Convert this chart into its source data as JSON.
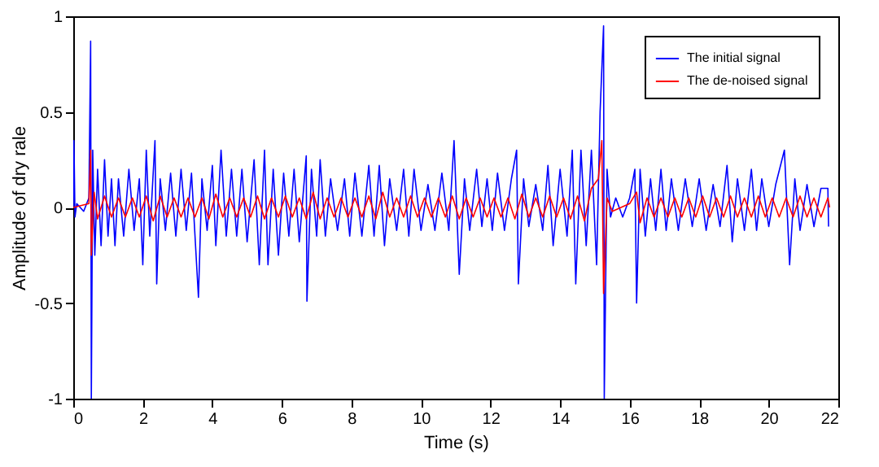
{
  "chart_data": {
    "type": "line",
    "xlabel": "Time (s)",
    "ylabel": "Amplitude of dry rale",
    "xlim": [
      0,
      22
    ],
    "ylim": [
      -1,
      1
    ],
    "xticks": [
      0,
      2,
      4,
      6,
      8,
      10,
      12,
      14,
      16,
      18,
      20,
      22
    ],
    "yticks": [
      -1,
      -0.5,
      0,
      0.5,
      1
    ],
    "grid": false,
    "legend": "top right",
    "marker": "none",
    "line_style": "solid",
    "series": [
      {
        "name": "The initial signal",
        "color": "#0000ff",
        "x": [
          0,
          0.02,
          0.05,
          0.1,
          0.3,
          0.45,
          0.5,
          0.52,
          0.56,
          0.62,
          0.7,
          0.8,
          0.9,
          1.0,
          1.1,
          1.2,
          1.3,
          1.45,
          1.6,
          1.75,
          1.9,
          2.0,
          2.1,
          2.2,
          2.35,
          2.4,
          2.5,
          2.65,
          2.8,
          2.95,
          3.1,
          3.25,
          3.4,
          3.6,
          3.7,
          3.85,
          4.0,
          4.1,
          4.25,
          4.4,
          4.55,
          4.7,
          4.85,
          5.0,
          5.2,
          5.35,
          5.5,
          5.6,
          5.75,
          5.9,
          6.05,
          6.2,
          6.35,
          6.5,
          6.7,
          6.72,
          6.85,
          7.0,
          7.1,
          7.25,
          7.4,
          7.6,
          7.8,
          7.95,
          8.1,
          8.3,
          8.5,
          8.65,
          8.8,
          8.95,
          9.1,
          9.3,
          9.5,
          9.65,
          9.8,
          10.0,
          10.2,
          10.4,
          10.6,
          10.8,
          10.95,
          11.1,
          11.25,
          11.4,
          11.6,
          11.75,
          11.9,
          12.05,
          12.2,
          12.4,
          12.6,
          12.75,
          12.8,
          12.95,
          13.1,
          13.3,
          13.5,
          13.65,
          13.8,
          14.0,
          14.2,
          14.35,
          14.45,
          14.6,
          14.75,
          14.9,
          15.05,
          15.15,
          15.25,
          15.27,
          15.35,
          15.45,
          15.6,
          15.8,
          16.0,
          16.15,
          16.2,
          16.3,
          16.45,
          16.6,
          16.75,
          16.9,
          17.05,
          17.2,
          17.4,
          17.6,
          17.8,
          18.0,
          18.2,
          18.4,
          18.6,
          18.8,
          18.95,
          19.1,
          19.3,
          19.5,
          19.65,
          19.8,
          20.0,
          20.2,
          20.45,
          20.6,
          20.75,
          20.9,
          21.1,
          21.3,
          21.5,
          21.7,
          21.72
        ],
        "values": [
          0,
          0.35,
          -0.05,
          0.02,
          -0.02,
          0.05,
          0.87,
          -1.0,
          0.3,
          -0.25,
          0.2,
          -0.2,
          0.25,
          -0.15,
          0.15,
          -0.2,
          0.15,
          -0.15,
          0.2,
          -0.12,
          0.15,
          -0.3,
          0.3,
          -0.15,
          0.35,
          -0.4,
          0.15,
          -0.12,
          0.18,
          -0.15,
          0.2,
          -0.12,
          0.18,
          -0.47,
          0.15,
          -0.12,
          0.22,
          -0.2,
          0.3,
          -0.15,
          0.2,
          -0.15,
          0.2,
          -0.18,
          0.25,
          -0.3,
          0.3,
          -0.3,
          0.2,
          -0.25,
          0.18,
          -0.15,
          0.2,
          -0.18,
          0.27,
          -0.49,
          0.2,
          -0.15,
          0.25,
          -0.15,
          0.15,
          -0.12,
          0.15,
          -0.15,
          0.18,
          -0.15,
          0.22,
          -0.15,
          0.22,
          -0.2,
          0.15,
          -0.12,
          0.2,
          -0.15,
          0.2,
          -0.12,
          0.12,
          -0.12,
          0.18,
          -0.12,
          0.35,
          -0.35,
          0.15,
          -0.12,
          0.2,
          -0.1,
          0.15,
          -0.12,
          0.18,
          -0.12,
          0.15,
          0.3,
          -0.4,
          0.15,
          -0.1,
          0.12,
          -0.12,
          0.22,
          -0.2,
          0.2,
          -0.15,
          0.3,
          -0.4,
          0.3,
          -0.2,
          0.3,
          -0.3,
          0.5,
          0.95,
          -1.0,
          0.2,
          -0.05,
          0.05,
          -0.05,
          0.05,
          0.2,
          -0.5,
          0.2,
          -0.15,
          0.15,
          -0.12,
          0.2,
          -0.12,
          0.15,
          -0.12,
          0.15,
          -0.1,
          0.15,
          -0.12,
          0.12,
          -0.1,
          0.22,
          -0.18,
          0.15,
          -0.12,
          0.2,
          -0.12,
          0.15,
          -0.1,
          0.12,
          0.3,
          -0.3,
          0.15,
          -0.12,
          0.12,
          -0.1,
          0.1,
          0.1,
          -0.1
        ]
      },
      {
        "name": "The de-noised signal",
        "color": "#ff0000",
        "x": [
          0,
          0.45,
          0.5,
          0.52,
          0.6,
          0.7,
          0.9,
          1.1,
          1.3,
          1.5,
          1.7,
          1.9,
          2.1,
          2.3,
          2.5,
          2.7,
          2.9,
          3.1,
          3.3,
          3.5,
          3.7,
          3.9,
          4.1,
          4.3,
          4.5,
          4.7,
          4.9,
          5.1,
          5.3,
          5.5,
          5.7,
          5.9,
          6.1,
          6.3,
          6.5,
          6.7,
          6.9,
          7.1,
          7.3,
          7.5,
          7.7,
          7.9,
          8.1,
          8.3,
          8.5,
          8.7,
          8.9,
          9.1,
          9.3,
          9.5,
          9.7,
          9.9,
          10.1,
          10.3,
          10.5,
          10.7,
          10.9,
          11.1,
          11.3,
          11.5,
          11.7,
          11.9,
          12.1,
          12.3,
          12.5,
          12.7,
          12.9,
          13.1,
          13.3,
          13.5,
          13.7,
          13.9,
          14.1,
          14.3,
          14.5,
          14.7,
          14.9,
          15.1,
          15.2,
          15.25,
          15.35,
          15.5,
          16.0,
          16.2,
          16.3,
          16.5,
          16.7,
          16.9,
          17.1,
          17.3,
          17.5,
          17.7,
          17.9,
          18.1,
          18.3,
          18.5,
          18.7,
          18.9,
          19.1,
          19.3,
          19.5,
          19.7,
          19.9,
          20.1,
          20.3,
          20.5,
          20.7,
          20.9,
          21.1,
          21.3,
          21.5,
          21.7,
          21.75
        ],
        "values": [
          0,
          0.02,
          0.3,
          -0.25,
          0.08,
          -0.06,
          0.06,
          -0.05,
          0.05,
          -0.05,
          0.05,
          -0.05,
          0.06,
          -0.07,
          0.06,
          -0.05,
          0.05,
          -0.05,
          0.05,
          -0.05,
          0.05,
          -0.06,
          0.07,
          -0.05,
          0.05,
          -0.05,
          0.05,
          -0.05,
          0.06,
          -0.06,
          0.05,
          -0.05,
          0.06,
          -0.05,
          0.05,
          -0.06,
          0.08,
          -0.06,
          0.05,
          -0.05,
          0.05,
          -0.05,
          0.05,
          -0.05,
          0.06,
          -0.06,
          0.08,
          -0.05,
          0.05,
          -0.05,
          0.06,
          -0.05,
          0.05,
          -0.05,
          0.05,
          -0.05,
          0.06,
          -0.06,
          0.05,
          -0.05,
          0.05,
          -0.05,
          0.05,
          -0.05,
          0.05,
          -0.06,
          0.07,
          -0.05,
          0.05,
          -0.05,
          0.06,
          -0.05,
          0.05,
          -0.06,
          0.06,
          -0.07,
          0.1,
          0.15,
          0.35,
          -0.45,
          0.05,
          -0.02,
          0.02,
          0.08,
          -0.08,
          0.05,
          -0.05,
          0.05,
          -0.05,
          0.05,
          -0.05,
          0.05,
          -0.05,
          0.06,
          -0.05,
          0.05,
          -0.05,
          0.06,
          -0.05,
          0.05,
          -0.05,
          0.06,
          -0.05,
          0.05,
          -0.05,
          0.05,
          -0.05,
          0.06,
          -0.05,
          0.05,
          -0.05,
          0.05,
          0
        ]
      }
    ]
  }
}
